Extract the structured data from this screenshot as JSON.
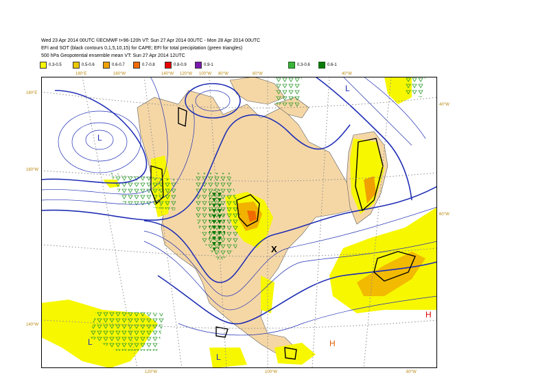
{
  "header": {
    "line1": "Wed 23 Apr 2014 00UTC ©ECMWF t+96-120h  VT: Sun 27 Apr 2014 00UTC - Mon 28 Apr 2014 00UTC",
    "line2": "EFI and SOT (black contours 0,1,5,10,15) for CAPE; EFI for total precipitation (green triangles)",
    "line3": "500 hPa Geopotential ensemble mean VT: Sun 27 Apr 2014 12UTC"
  },
  "legend": [
    {
      "label": "0.3-0.5",
      "color": "#f7f700"
    },
    {
      "label": "0.5-0.6",
      "color": "#e8c800"
    },
    {
      "label": "0.6-0.7",
      "color": "#f0a000"
    },
    {
      "label": "0.7-0.8",
      "color": "#f06a00"
    },
    {
      "label": "0.8-0.9",
      "color": "#e80000"
    },
    {
      "label": "0.9-1",
      "color": "#7a18b0"
    },
    {
      "label": "0.3-0.6",
      "color": "#3cb43c"
    },
    {
      "label": "0.6-1",
      "color": "#0a7a0a"
    }
  ],
  "map_labels": {
    "top": [
      "180°E",
      "160°W",
      "140°W",
      "120°W",
      "100°W",
      "80°W",
      "60°W",
      "40°W"
    ],
    "bottom": [
      "120°W",
      "100°W",
      "80°W"
    ],
    "left": [
      "180°E",
      "160°W",
      "140°W"
    ],
    "right": [
      "40°W",
      "60°W"
    ]
  },
  "markers": {
    "low": "L",
    "high": "H",
    "point": "X"
  },
  "colors": {
    "land": "#f5d7a6",
    "ocean": "#ffffff",
    "contour": "#1e2db4",
    "coast": "#5a5a5a"
  }
}
